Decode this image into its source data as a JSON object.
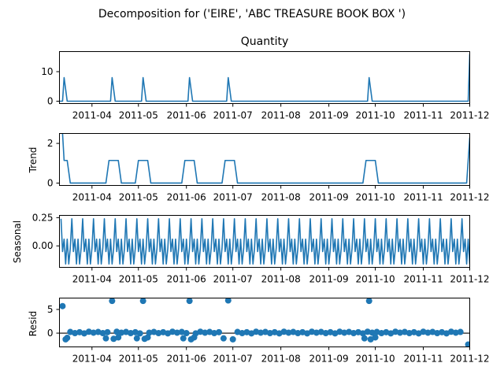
{
  "figure": {
    "suptitle": "Decomposition for ('EIRE', 'ABC TREASURE BOOK BOX ')"
  },
  "chart_data": [
    {
      "type": "line",
      "title": "Quantity",
      "ylabel": "",
      "xlim": [
        "2011-03-11",
        "2011-12-01"
      ],
      "ylim": [
        -0.8,
        16.8
      ],
      "yticks": [
        0,
        10
      ],
      "xticks": [
        "2011-04",
        "2011-05",
        "2011-06",
        "2011-07",
        "2011-08",
        "2011-09",
        "2011-10",
        "2011-11",
        "2011-12"
      ],
      "series": [
        {
          "x": [
            "2011-03-11",
            "2011-03-13",
            "2011-03-14",
            "2011-03-16",
            "2011-04-13",
            "2011-04-14",
            "2011-04-16",
            "2011-05-03",
            "2011-05-04",
            "2011-05-06",
            "2011-06-02",
            "2011-06-03",
            "2011-06-05",
            "2011-06-27",
            "2011-06-28",
            "2011-06-30",
            "2011-09-26",
            "2011-09-27",
            "2011-09-29",
            "2011-11-30",
            "2011-12-01"
          ],
          "values": [
            0,
            0,
            8,
            0,
            0,
            8,
            0,
            0,
            8,
            0,
            0,
            8,
            0,
            0,
            8,
            0,
            0,
            8,
            0,
            0,
            16
          ]
        }
      ]
    },
    {
      "type": "line",
      "title": "",
      "ylabel": "Trend",
      "xlim": [
        "2011-03-11",
        "2011-12-01"
      ],
      "ylim": [
        -0.12,
        2.5
      ],
      "yticks": [
        0,
        2
      ],
      "xticks": [
        "2011-04",
        "2011-05",
        "2011-06",
        "2011-07",
        "2011-08",
        "2011-09",
        "2011-10",
        "2011-11",
        "2011-12"
      ],
      "series": [
        {
          "x": [
            "2011-03-13",
            "2011-03-14",
            "2011-03-16",
            "2011-03-18",
            "2011-04-10",
            "2011-04-12",
            "2011-04-18",
            "2011-04-20",
            "2011-04-29",
            "2011-05-01",
            "2011-05-07",
            "2011-05-09",
            "2011-05-29",
            "2011-05-31",
            "2011-06-06",
            "2011-06-08",
            "2011-06-24",
            "2011-06-26",
            "2011-07-02",
            "2011-07-04",
            "2011-09-23",
            "2011-09-25",
            "2011-10-01",
            "2011-10-03",
            "2011-11-27",
            "2011-11-29",
            "2011-12-01"
          ],
          "values": [
            2.5,
            1.14,
            1.14,
            0,
            0,
            1.14,
            1.14,
            0,
            0,
            1.14,
            1.14,
            0,
            0,
            1.14,
            1.14,
            0,
            0,
            1.14,
            1.14,
            0,
            0,
            1.14,
            1.14,
            0,
            0,
            0,
            2.3
          ]
        }
      ]
    },
    {
      "type": "line",
      "title": "",
      "ylabel": "Seasonal",
      "xlim": [
        "2011-03-11",
        "2011-12-01"
      ],
      "ylim": [
        -0.19,
        0.27
      ],
      "yticks": [
        0.0,
        0.25
      ],
      "ytick_labels": [
        "0.00",
        "0.25"
      ],
      "xticks": [
        "2011-04",
        "2011-05",
        "2011-06",
        "2011-07",
        "2011-08",
        "2011-09",
        "2011-10",
        "2011-11",
        "2011-12"
      ],
      "period_days": 7,
      "pattern": [
        0.24,
        -0.05,
        0.06,
        -0.16,
        0.06,
        -0.16,
        -0.02
      ],
      "start": "2011-03-12",
      "end": "2011-12-01"
    },
    {
      "type": "scatter",
      "title": "",
      "ylabel": "Resid",
      "xlim": [
        "2011-03-11",
        "2011-12-01"
      ],
      "ylim": [
        -2.9,
        7.4
      ],
      "yticks": [
        0,
        5
      ],
      "baseline": 0,
      "xticks": [
        "2011-04",
        "2011-05",
        "2011-06",
        "2011-07",
        "2011-08",
        "2011-09",
        "2011-10",
        "2011-11",
        "2011-12"
      ],
      "outliers": [
        {
          "x": "2011-03-13",
          "y": 5.7
        },
        {
          "x": "2011-03-15",
          "y": -1.3
        },
        {
          "x": "2011-03-16",
          "y": -1.0
        },
        {
          "x": "2011-04-10",
          "y": -1.1
        },
        {
          "x": "2011-04-14",
          "y": 6.8
        },
        {
          "x": "2011-04-15",
          "y": -1.2
        },
        {
          "x": "2011-04-18",
          "y": -0.9
        },
        {
          "x": "2011-04-30",
          "y": -1.1
        },
        {
          "x": "2011-05-04",
          "y": 6.8
        },
        {
          "x": "2011-05-05",
          "y": -1.2
        },
        {
          "x": "2011-05-07",
          "y": -0.9
        },
        {
          "x": "2011-05-30",
          "y": -1.1
        },
        {
          "x": "2011-06-03",
          "y": 6.8
        },
        {
          "x": "2011-06-04",
          "y": -1.3
        },
        {
          "x": "2011-06-06",
          "y": -0.9
        },
        {
          "x": "2011-06-25",
          "y": -1.1
        },
        {
          "x": "2011-06-28",
          "y": 6.9
        },
        {
          "x": "2011-07-01",
          "y": -1.3
        },
        {
          "x": "2011-09-24",
          "y": -1.1
        },
        {
          "x": "2011-09-27",
          "y": 6.8
        },
        {
          "x": "2011-09-28",
          "y": -1.3
        },
        {
          "x": "2011-10-01",
          "y": -0.9
        },
        {
          "x": "2011-11-30",
          "y": -2.4
        }
      ],
      "regular_points_every_days": 3,
      "regular_range": [
        "2011-03-18",
        "2011-11-27"
      ],
      "regular_values": [
        0.25,
        0.0,
        0.2,
        -0.05,
        0.3,
        0.1
      ]
    }
  ]
}
